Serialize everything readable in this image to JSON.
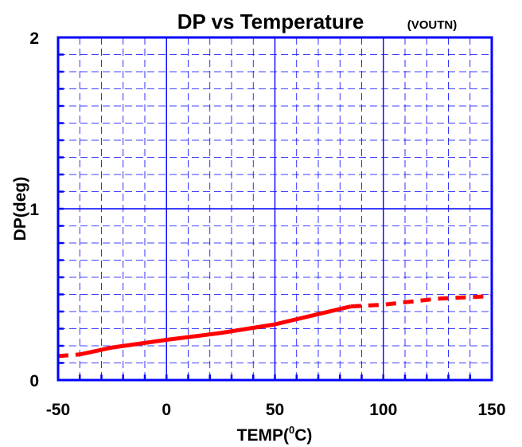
{
  "chart_data": {
    "type": "line",
    "title": "DP vs Temperature",
    "subtitle": "(VOUTN)",
    "xlabel": "TEMP(°C)",
    "xlabel_parts": {
      "prefix": "TEMP(",
      "superscript": "0",
      "suffix": "C)"
    },
    "ylabel": "DP(deg)",
    "xlim": [
      -50,
      150
    ],
    "ylim": [
      0,
      2
    ],
    "x_ticks": [
      -50,
      0,
      50,
      100,
      150
    ],
    "x_tick_labels": [
      "-50",
      "0",
      "50",
      "100",
      "150"
    ],
    "y_ticks": [
      0,
      1,
      2
    ],
    "y_tick_labels": [
      "0",
      "1",
      "2"
    ],
    "x_minor_step": 10,
    "y_minor_step": 0.1,
    "grid": true,
    "colors": {
      "frame": "#0000ff",
      "major_grid": "#0000ff",
      "minor_grid": "#0000ff",
      "series": "#ff0000"
    },
    "series": [
      {
        "style": "solid",
        "x": [
          -40,
          -25,
          0,
          25,
          50,
          85
        ],
        "y": [
          0.15,
          0.19,
          0.235,
          0.275,
          0.325,
          0.43
        ]
      },
      {
        "style": "dashed",
        "x": [
          -50,
          -40
        ],
        "y": [
          0.14,
          0.15
        ]
      },
      {
        "style": "dashed",
        "x": [
          85,
          100,
          125,
          150
        ],
        "y": [
          0.43,
          0.44,
          0.475,
          0.49
        ]
      }
    ]
  }
}
